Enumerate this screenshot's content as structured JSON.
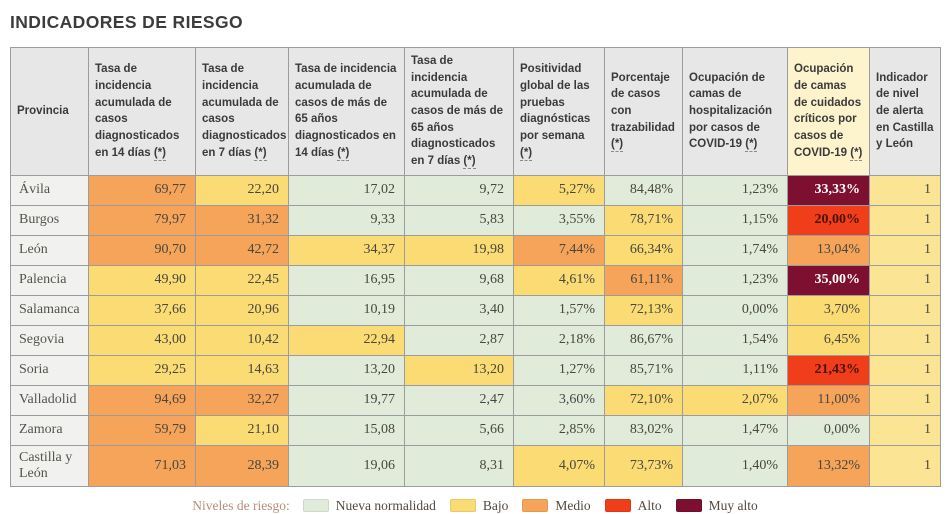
{
  "title": "INDICADORES DE RIESGO",
  "colors": {
    "levels": {
      "nueva": "#e0ecd9",
      "bajo": "#fbdb73",
      "medio": "#f6a45a",
      "alto": "#f03e1b",
      "muy_alto": "#7d0f31",
      "indicador": "#fbe494"
    },
    "level_text": {
      "default": "#47463f",
      "alto": "#4a120b",
      "muy_alto": "#ffffff"
    },
    "header_bg": "#e7e7e7",
    "header_highlight_bg": "#fdf3cd",
    "province_bg": "#f1f1ef",
    "border": "#9c9c9c",
    "title_text": "#3c3c3c",
    "legend_title_text": "#b68e7d",
    "legend_label_text": "#55493f"
  },
  "chart_data": {
    "type": "table",
    "columns": [
      {
        "id": "provincia",
        "label": "Provincia",
        "marker": "",
        "highlight": false
      },
      {
        "id": "ia-14-dias",
        "label": "Tasa de incidencia acumulada de casos diagnosticados en 14 días",
        "marker": "(*)",
        "highlight": false
      },
      {
        "id": "ia-7-dias",
        "label": "Tasa de incidencia acumulada de casos diagnosticados en 7 días",
        "marker": "(*)",
        "highlight": false
      },
      {
        "id": "ia-65-14-dias",
        "label": "Tasa de incidencia acumulada de casos de más de 65 años diagnosticados en 14 días",
        "marker": "(*)",
        "highlight": false
      },
      {
        "id": "ia-65-7-dias",
        "label": "Tasa de incidencia acumulada de casos de más de 65 años diagnosticados en 7 días",
        "marker": "(*)",
        "highlight": false
      },
      {
        "id": "positividad",
        "label": "Positividad global de las pruebas diagnósticas por semana",
        "marker": "(*)",
        "highlight": false
      },
      {
        "id": "trazabilidad",
        "label": "Porcentaje de casos con trazabilidad",
        "marker": "(*)",
        "highlight": false
      },
      {
        "id": "camas-hospitalizacion",
        "label": "Ocupación de camas de hospitalización por casos de COVID-19",
        "marker": "(*)",
        "highlight": false
      },
      {
        "id": "camas-criticos",
        "label": "Ocupación de camas de cuidados críticos por casos de COVID-19",
        "marker": "(*)",
        "highlight": true
      },
      {
        "id": "nivel-alerta",
        "label": "Indicador de nivel de alerta en Castilla y León",
        "marker": "",
        "highlight": false
      }
    ],
    "rows": [
      {
        "province": "Ávila",
        "cells": [
          {
            "v": "69,77",
            "level": "medio"
          },
          {
            "v": "22,20",
            "level": "bajo"
          },
          {
            "v": "17,02",
            "level": "nueva"
          },
          {
            "v": "9,72",
            "level": "nueva"
          },
          {
            "v": "5,27%",
            "level": "bajo"
          },
          {
            "v": "84,48%",
            "level": "nueva"
          },
          {
            "v": "1,23%",
            "level": "nueva"
          },
          {
            "v": "33,33%",
            "level": "muy_alto"
          },
          {
            "v": "1",
            "level": "indicador"
          }
        ]
      },
      {
        "province": "Burgos",
        "cells": [
          {
            "v": "79,97",
            "level": "medio"
          },
          {
            "v": "31,32",
            "level": "medio"
          },
          {
            "v": "9,33",
            "level": "nueva"
          },
          {
            "v": "5,83",
            "level": "nueva"
          },
          {
            "v": "3,55%",
            "level": "nueva"
          },
          {
            "v": "78,71%",
            "level": "bajo"
          },
          {
            "v": "1,15%",
            "level": "nueva"
          },
          {
            "v": "20,00%",
            "level": "alto"
          },
          {
            "v": "1",
            "level": "indicador"
          }
        ]
      },
      {
        "province": "León",
        "cells": [
          {
            "v": "90,70",
            "level": "medio"
          },
          {
            "v": "42,72",
            "level": "medio"
          },
          {
            "v": "34,37",
            "level": "bajo"
          },
          {
            "v": "19,98",
            "level": "bajo"
          },
          {
            "v": "7,44%",
            "level": "medio"
          },
          {
            "v": "66,34%",
            "level": "bajo"
          },
          {
            "v": "1,74%",
            "level": "nueva"
          },
          {
            "v": "13,04%",
            "level": "medio"
          },
          {
            "v": "1",
            "level": "indicador"
          }
        ]
      },
      {
        "province": "Palencia",
        "cells": [
          {
            "v": "49,90",
            "level": "bajo"
          },
          {
            "v": "22,45",
            "level": "bajo"
          },
          {
            "v": "16,95",
            "level": "nueva"
          },
          {
            "v": "9,68",
            "level": "nueva"
          },
          {
            "v": "4,61%",
            "level": "bajo"
          },
          {
            "v": "61,11%",
            "level": "medio"
          },
          {
            "v": "1,23%",
            "level": "nueva"
          },
          {
            "v": "35,00%",
            "level": "muy_alto"
          },
          {
            "v": "1",
            "level": "indicador"
          }
        ]
      },
      {
        "province": "Salamanca",
        "cells": [
          {
            "v": "37,66",
            "level": "bajo"
          },
          {
            "v": "20,96",
            "level": "bajo"
          },
          {
            "v": "10,19",
            "level": "nueva"
          },
          {
            "v": "3,40",
            "level": "nueva"
          },
          {
            "v": "1,57%",
            "level": "nueva"
          },
          {
            "v": "72,13%",
            "level": "bajo"
          },
          {
            "v": "0,00%",
            "level": "nueva"
          },
          {
            "v": "3,70%",
            "level": "bajo"
          },
          {
            "v": "1",
            "level": "indicador"
          }
        ]
      },
      {
        "province": "Segovia",
        "cells": [
          {
            "v": "43,00",
            "level": "bajo"
          },
          {
            "v": "10,42",
            "level": "bajo"
          },
          {
            "v": "22,94",
            "level": "bajo"
          },
          {
            "v": "2,87",
            "level": "nueva"
          },
          {
            "v": "2,18%",
            "level": "nueva"
          },
          {
            "v": "86,67%",
            "level": "nueva"
          },
          {
            "v": "1,54%",
            "level": "nueva"
          },
          {
            "v": "6,45%",
            "level": "bajo"
          },
          {
            "v": "1",
            "level": "indicador"
          }
        ]
      },
      {
        "province": "Soria",
        "cells": [
          {
            "v": "29,25",
            "level": "bajo"
          },
          {
            "v": "14,63",
            "level": "bajo"
          },
          {
            "v": "13,20",
            "level": "nueva"
          },
          {
            "v": "13,20",
            "level": "bajo"
          },
          {
            "v": "1,27%",
            "level": "nueva"
          },
          {
            "v": "85,71%",
            "level": "nueva"
          },
          {
            "v": "1,11%",
            "level": "nueva"
          },
          {
            "v": "21,43%",
            "level": "alto"
          },
          {
            "v": "1",
            "level": "indicador"
          }
        ]
      },
      {
        "province": "Valladolid",
        "cells": [
          {
            "v": "94,69",
            "level": "medio"
          },
          {
            "v": "32,27",
            "level": "medio"
          },
          {
            "v": "19,77",
            "level": "nueva"
          },
          {
            "v": "2,47",
            "level": "nueva"
          },
          {
            "v": "3,60%",
            "level": "nueva"
          },
          {
            "v": "72,10%",
            "level": "bajo"
          },
          {
            "v": "2,07%",
            "level": "bajo"
          },
          {
            "v": "11,00%",
            "level": "medio"
          },
          {
            "v": "1",
            "level": "indicador"
          }
        ]
      },
      {
        "province": "Zamora",
        "cells": [
          {
            "v": "59,79",
            "level": "medio"
          },
          {
            "v": "21,10",
            "level": "bajo"
          },
          {
            "v": "15,08",
            "level": "nueva"
          },
          {
            "v": "5,66",
            "level": "nueva"
          },
          {
            "v": "2,85%",
            "level": "nueva"
          },
          {
            "v": "83,02%",
            "level": "nueva"
          },
          {
            "v": "1,47%",
            "level": "nueva"
          },
          {
            "v": "0,00%",
            "level": "nueva"
          },
          {
            "v": "1",
            "level": "indicador"
          }
        ]
      },
      {
        "province": "Castilla y León",
        "cells": [
          {
            "v": "71,03",
            "level": "medio"
          },
          {
            "v": "28,39",
            "level": "medio"
          },
          {
            "v": "19,06",
            "level": "nueva"
          },
          {
            "v": "8,31",
            "level": "nueva"
          },
          {
            "v": "4,07%",
            "level": "bajo"
          },
          {
            "v": "73,73%",
            "level": "bajo"
          },
          {
            "v": "1,40%",
            "level": "nueva"
          },
          {
            "v": "13,32%",
            "level": "medio"
          },
          {
            "v": "1",
            "level": "indicador"
          }
        ]
      }
    ],
    "legend": {
      "title": "Niveles de riesgo:",
      "items": [
        {
          "label": "Nueva normalidad",
          "level": "nueva"
        },
        {
          "label": "Bajo",
          "level": "bajo"
        },
        {
          "label": "Medio",
          "level": "medio"
        },
        {
          "label": "Alto",
          "level": "alto"
        },
        {
          "label": "Muy alto",
          "level": "muy_alto"
        }
      ]
    }
  }
}
